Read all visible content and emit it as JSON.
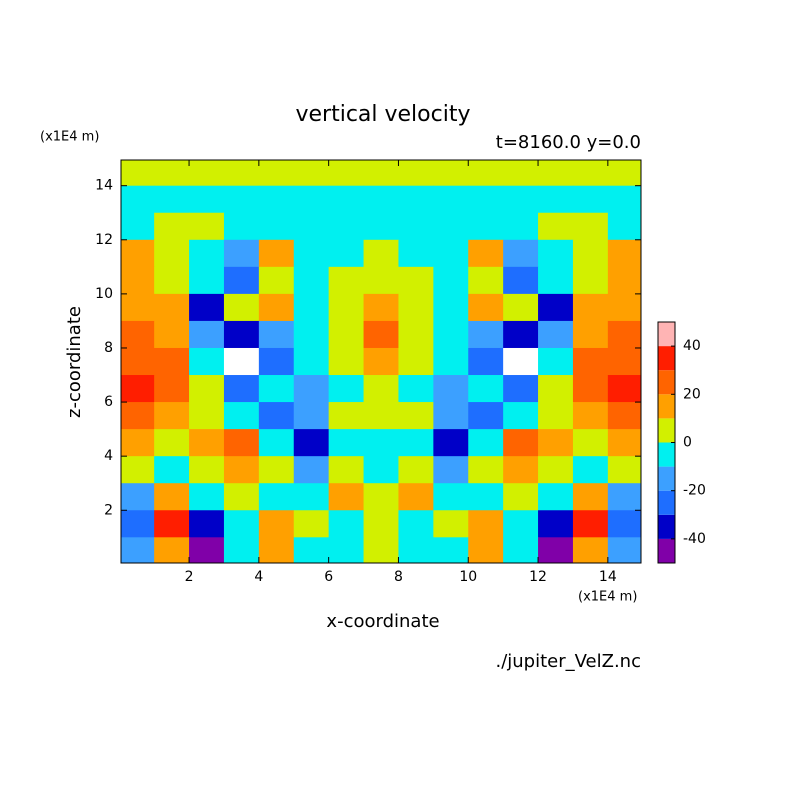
{
  "chart_data": {
    "type": "contour",
    "title": "vertical velocity",
    "subtitle": "t=8160.0 y=0.0",
    "x_label": "x-coordinate",
    "y_label": "z-coordinate",
    "x_unit": "(x1E4 m)",
    "y_unit": "(x1E4 m)",
    "source": "./jupiter_VelZ.nc",
    "xlim": [
      0.05,
      14.95
    ],
    "ylim": [
      0.05,
      14.95
    ],
    "xticks": [
      2,
      4,
      6,
      8,
      10,
      12,
      14
    ],
    "yticks": [
      2,
      4,
      6,
      8,
      10,
      12,
      14
    ],
    "x": [
      0.5,
      1.5,
      2.5,
      3.5,
      4.5,
      5.5,
      6.5,
      7.5,
      8.5,
      9.5,
      10.5,
      11.5,
      12.5,
      13.5,
      14.5
    ],
    "y": [
      14.5,
      13.5,
      12.5,
      11.5,
      10.5,
      9.5,
      8.5,
      7.5,
      6.5,
      5.5,
      4.5,
      3.5,
      2.5,
      1.5,
      0.5
    ],
    "z": [
      [
        5,
        5,
        5,
        5,
        5,
        5,
        5,
        5,
        5,
        5,
        5,
        5,
        5,
        5,
        5
      ],
      [
        -5,
        -5,
        -5,
        -5,
        -5,
        -5,
        -5,
        -5,
        -5,
        -5,
        -5,
        -5,
        -5,
        -5,
        -5
      ],
      [
        -5,
        5,
        5,
        -5,
        -5,
        -5,
        -5,
        -5,
        -5,
        -5,
        -5,
        -5,
        5,
        5,
        -5
      ],
      [
        15,
        5,
        -5,
        -15,
        15,
        -5,
        -5,
        5,
        -5,
        -5,
        15,
        -15,
        -5,
        5,
        15
      ],
      [
        15,
        5,
        -5,
        -25,
        5,
        -5,
        5,
        5,
        5,
        -5,
        5,
        -25,
        -5,
        5,
        15
      ],
      [
        15,
        15,
        -35,
        5,
        15,
        -5,
        5,
        15,
        5,
        -5,
        15,
        5,
        -35,
        15,
        15
      ],
      [
        25,
        15,
        -15,
        -35,
        -15,
        -5,
        5,
        25,
        5,
        -5,
        -15,
        -35,
        -15,
        15,
        25
      ],
      [
        25,
        25,
        -5,
        -55,
        -25,
        -5,
        5,
        15,
        5,
        -5,
        -25,
        -55,
        -5,
        25,
        25
      ],
      [
        35,
        25,
        5,
        -25,
        -5,
        -15,
        -5,
        5,
        -5,
        -15,
        -5,
        -25,
        5,
        25,
        35
      ],
      [
        25,
        15,
        5,
        -5,
        -25,
        -15,
        5,
        5,
        5,
        -15,
        -25,
        -5,
        5,
        15,
        25
      ],
      [
        15,
        5,
        15,
        25,
        -5,
        -35,
        -5,
        -5,
        -5,
        -35,
        -5,
        25,
        15,
        5,
        15
      ],
      [
        5,
        -5,
        5,
        15,
        5,
        -15,
        5,
        -5,
        5,
        -15,
        5,
        15,
        5,
        -5,
        5
      ],
      [
        -15,
        15,
        -5,
        5,
        -5,
        -5,
        15,
        5,
        15,
        -5,
        -5,
        5,
        -5,
        15,
        -15
      ],
      [
        -25,
        35,
        -35,
        -5,
        15,
        5,
        -5,
        5,
        -5,
        5,
        15,
        -5,
        -35,
        35,
        -25
      ],
      [
        -15,
        15,
        -45,
        -5,
        15,
        -5,
        -5,
        5,
        -5,
        -5,
        15,
        -5,
        -45,
        15,
        -15
      ]
    ],
    "levels": [
      -50,
      -40,
      -30,
      -20,
      -10,
      0,
      10,
      20,
      30,
      40,
      50
    ],
    "colors": [
      "#8000a8",
      "#0000c8",
      "#1e6eff",
      "#3ca0ff",
      "#00f0f0",
      "#d2f000",
      "#ffa000",
      "#ff6400",
      "#ff1e00",
      "#ffb4b4"
    ],
    "colorbar_ticks": [
      -40,
      -20,
      0,
      20,
      40
    ]
  }
}
